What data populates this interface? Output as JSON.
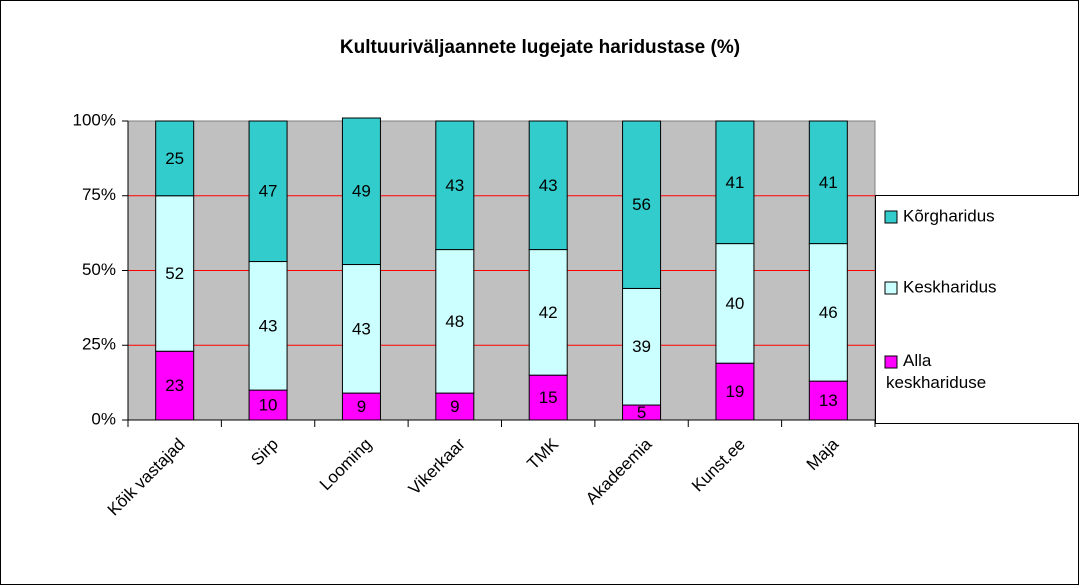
{
  "chart_data": {
    "type": "stacked_bar",
    "title": "Kultuuriväljaannete lugejate haridustase (%)",
    "categories": [
      "Kõik vastajad",
      "Sirp",
      "Looming",
      "Vikerkaar",
      "TMK",
      "Akadeemia",
      "Kunst.ee",
      "Maja"
    ],
    "series": [
      {
        "name": "Alla keskhariduse",
        "color": "#ff00ff",
        "values": [
          23,
          10,
          9,
          9,
          15,
          5,
          19,
          13
        ]
      },
      {
        "name": "Keskharidus",
        "color": "#ccffff",
        "values": [
          52,
          43,
          43,
          48,
          42,
          39,
          40,
          46
        ]
      },
      {
        "name": "Kõrgharidus",
        "color": "#33cccc",
        "values": [
          25,
          47,
          49,
          43,
          43,
          56,
          41,
          41
        ]
      }
    ],
    "ylim": [
      0,
      100
    ],
    "yticks": [
      {
        "value": 0,
        "label": "0%"
      },
      {
        "value": 25,
        "label": "25%"
      },
      {
        "value": 50,
        "label": "50%"
      },
      {
        "value": 75,
        "label": "75%"
      },
      {
        "value": 100,
        "label": "100%"
      }
    ],
    "grid": true,
    "grid_color": "#ff0000",
    "plot_background": "#c0c0c0",
    "legend": "right"
  }
}
